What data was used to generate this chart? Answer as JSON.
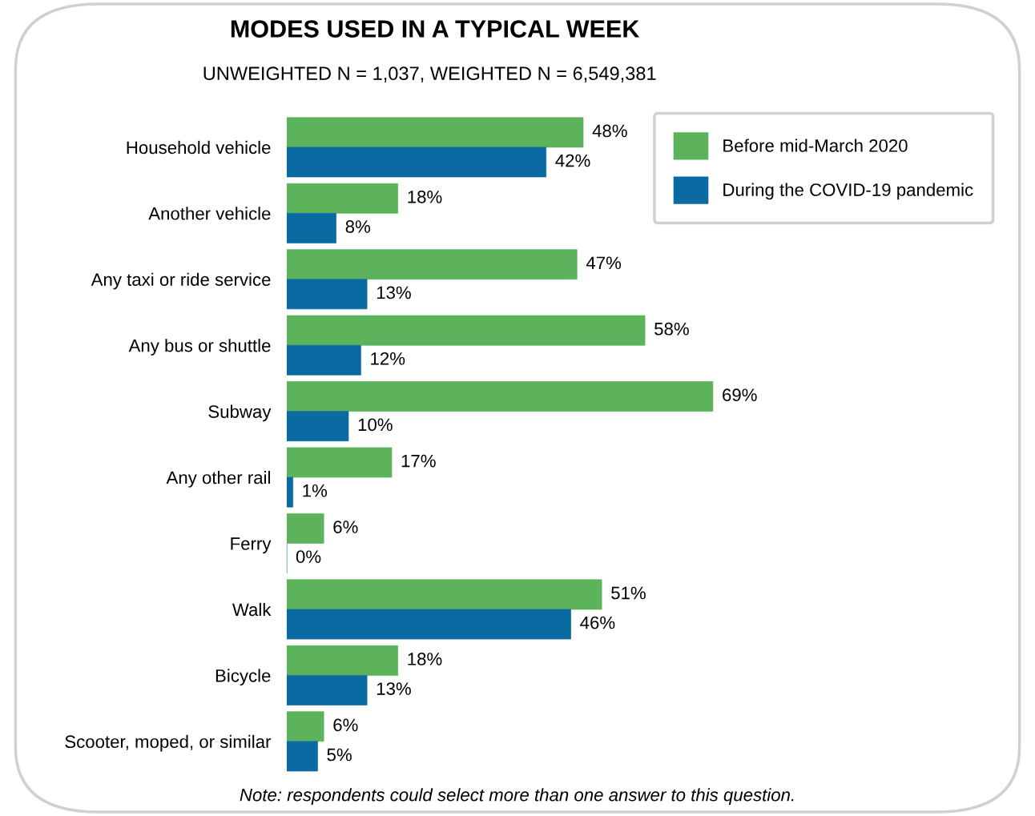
{
  "chart_data": {
    "type": "bar",
    "orientation": "horizontal",
    "title": "MODES USED IN A TYPICAL WEEK",
    "subtitle": "UNWEIGHTED N = 1,037, WEIGHTED N = 6,549,381",
    "categories": [
      "Household vehicle",
      "Another vehicle",
      "Any taxi or ride service",
      "Any bus or shuttle",
      "Subway",
      "Any other rail",
      "Ferry",
      "Walk",
      "Bicycle",
      "Scooter, moped, or similar"
    ],
    "series": [
      {
        "name": "Before mid-March 2020",
        "color": "#5cb35c",
        "values": [
          48,
          18,
          47,
          58,
          69,
          17,
          6,
          51,
          18,
          6
        ],
        "value_labels": [
          "48%",
          "18%",
          "47%",
          "58%",
          "69%",
          "17%",
          "6%",
          "51%",
          "18%",
          "6%"
        ]
      },
      {
        "name": "During the COVID-19 pandemic",
        "color": "#0a6aa1",
        "values": [
          42,
          8,
          13,
          12,
          10,
          1,
          0,
          46,
          13,
          5
        ],
        "value_labels": [
          "42%",
          "8%",
          "13%",
          "12%",
          "10%",
          "1%",
          "0%",
          "46%",
          "13%",
          "5%"
        ]
      }
    ],
    "legend": "top right",
    "grid": false,
    "annotations": [
      "Note: respondents could select more than one answer to this question."
    ]
  }
}
